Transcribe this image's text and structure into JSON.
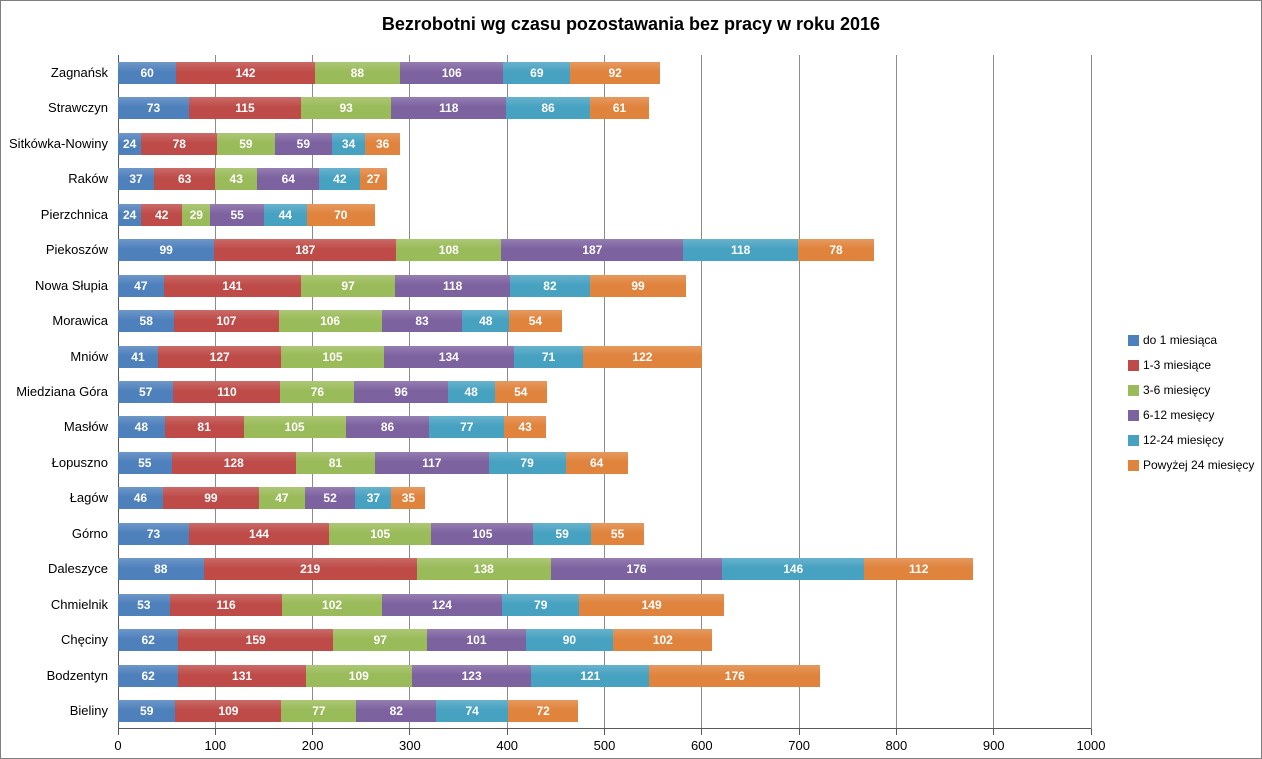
{
  "chart_data": {
    "type": "bar",
    "orientation": "horizontal",
    "stacked": true,
    "title": "Bezrobotni wg czasu pozostawania bez pracy w roku 2016",
    "categories": [
      "Zagnańsk",
      "Strawczyn",
      "Sitkówka-Nowiny",
      "Raków",
      "Pierzchnica",
      "Piekoszów",
      "Nowa Słupia",
      "Morawica",
      "Mniów",
      "Miedziana Góra",
      "Masłów",
      "Łopuszno",
      "Łagów",
      "Górno",
      "Daleszyce",
      "Chmielnik",
      "Chęciny",
      "Bodzentyn",
      "Bieliny"
    ],
    "series": [
      {
        "name": "do 1 miesiąca",
        "color": "#4e80bc",
        "values": [
          60,
          73,
          24,
          37,
          24,
          99,
          47,
          58,
          41,
          57,
          48,
          55,
          46,
          73,
          88,
          53,
          62,
          62,
          59
        ]
      },
      {
        "name": "1-3 miesiące",
        "color": "#be4b48",
        "values": [
          142,
          115,
          78,
          63,
          42,
          187,
          141,
          107,
          127,
          110,
          81,
          128,
          99,
          144,
          219,
          116,
          159,
          131,
          109
        ]
      },
      {
        "name": "3-6 miesięcy",
        "color": "#9abb59",
        "values": [
          88,
          93,
          59,
          43,
          29,
          108,
          97,
          106,
          105,
          76,
          105,
          81,
          47,
          105,
          138,
          102,
          97,
          109,
          77
        ]
      },
      {
        "name": "6-12 mesięcy",
        "color": "#7d62a0",
        "values": [
          106,
          118,
          59,
          64,
          55,
          187,
          118,
          83,
          134,
          96,
          86,
          117,
          52,
          105,
          176,
          124,
          101,
          123,
          82
        ]
      },
      {
        "name": "12-24 miesięcy",
        "color": "#47a2c1",
        "values": [
          69,
          86,
          34,
          42,
          44,
          118,
          82,
          48,
          71,
          48,
          77,
          79,
          37,
          59,
          146,
          79,
          90,
          121,
          74
        ]
      },
      {
        "name": "Powyżej 24 miesięcy",
        "color": "#e0833d",
        "values": [
          92,
          61,
          36,
          27,
          70,
          78,
          99,
          54,
          122,
          54,
          43,
          64,
          35,
          55,
          112,
          149,
          102,
          176,
          72
        ]
      }
    ],
    "xlim": [
      0,
      1000
    ],
    "x_tick_interval": 100,
    "x_tick_labels": [
      "0",
      "100",
      "200",
      "300",
      "400",
      "500",
      "600",
      "700",
      "800",
      "900",
      "1000"
    ],
    "grid": true,
    "legend_position": "right",
    "data_labels": true,
    "data_label_color": "#ffffff",
    "gridline_color": "#8c8c8c",
    "axis_color": "#595959"
  }
}
